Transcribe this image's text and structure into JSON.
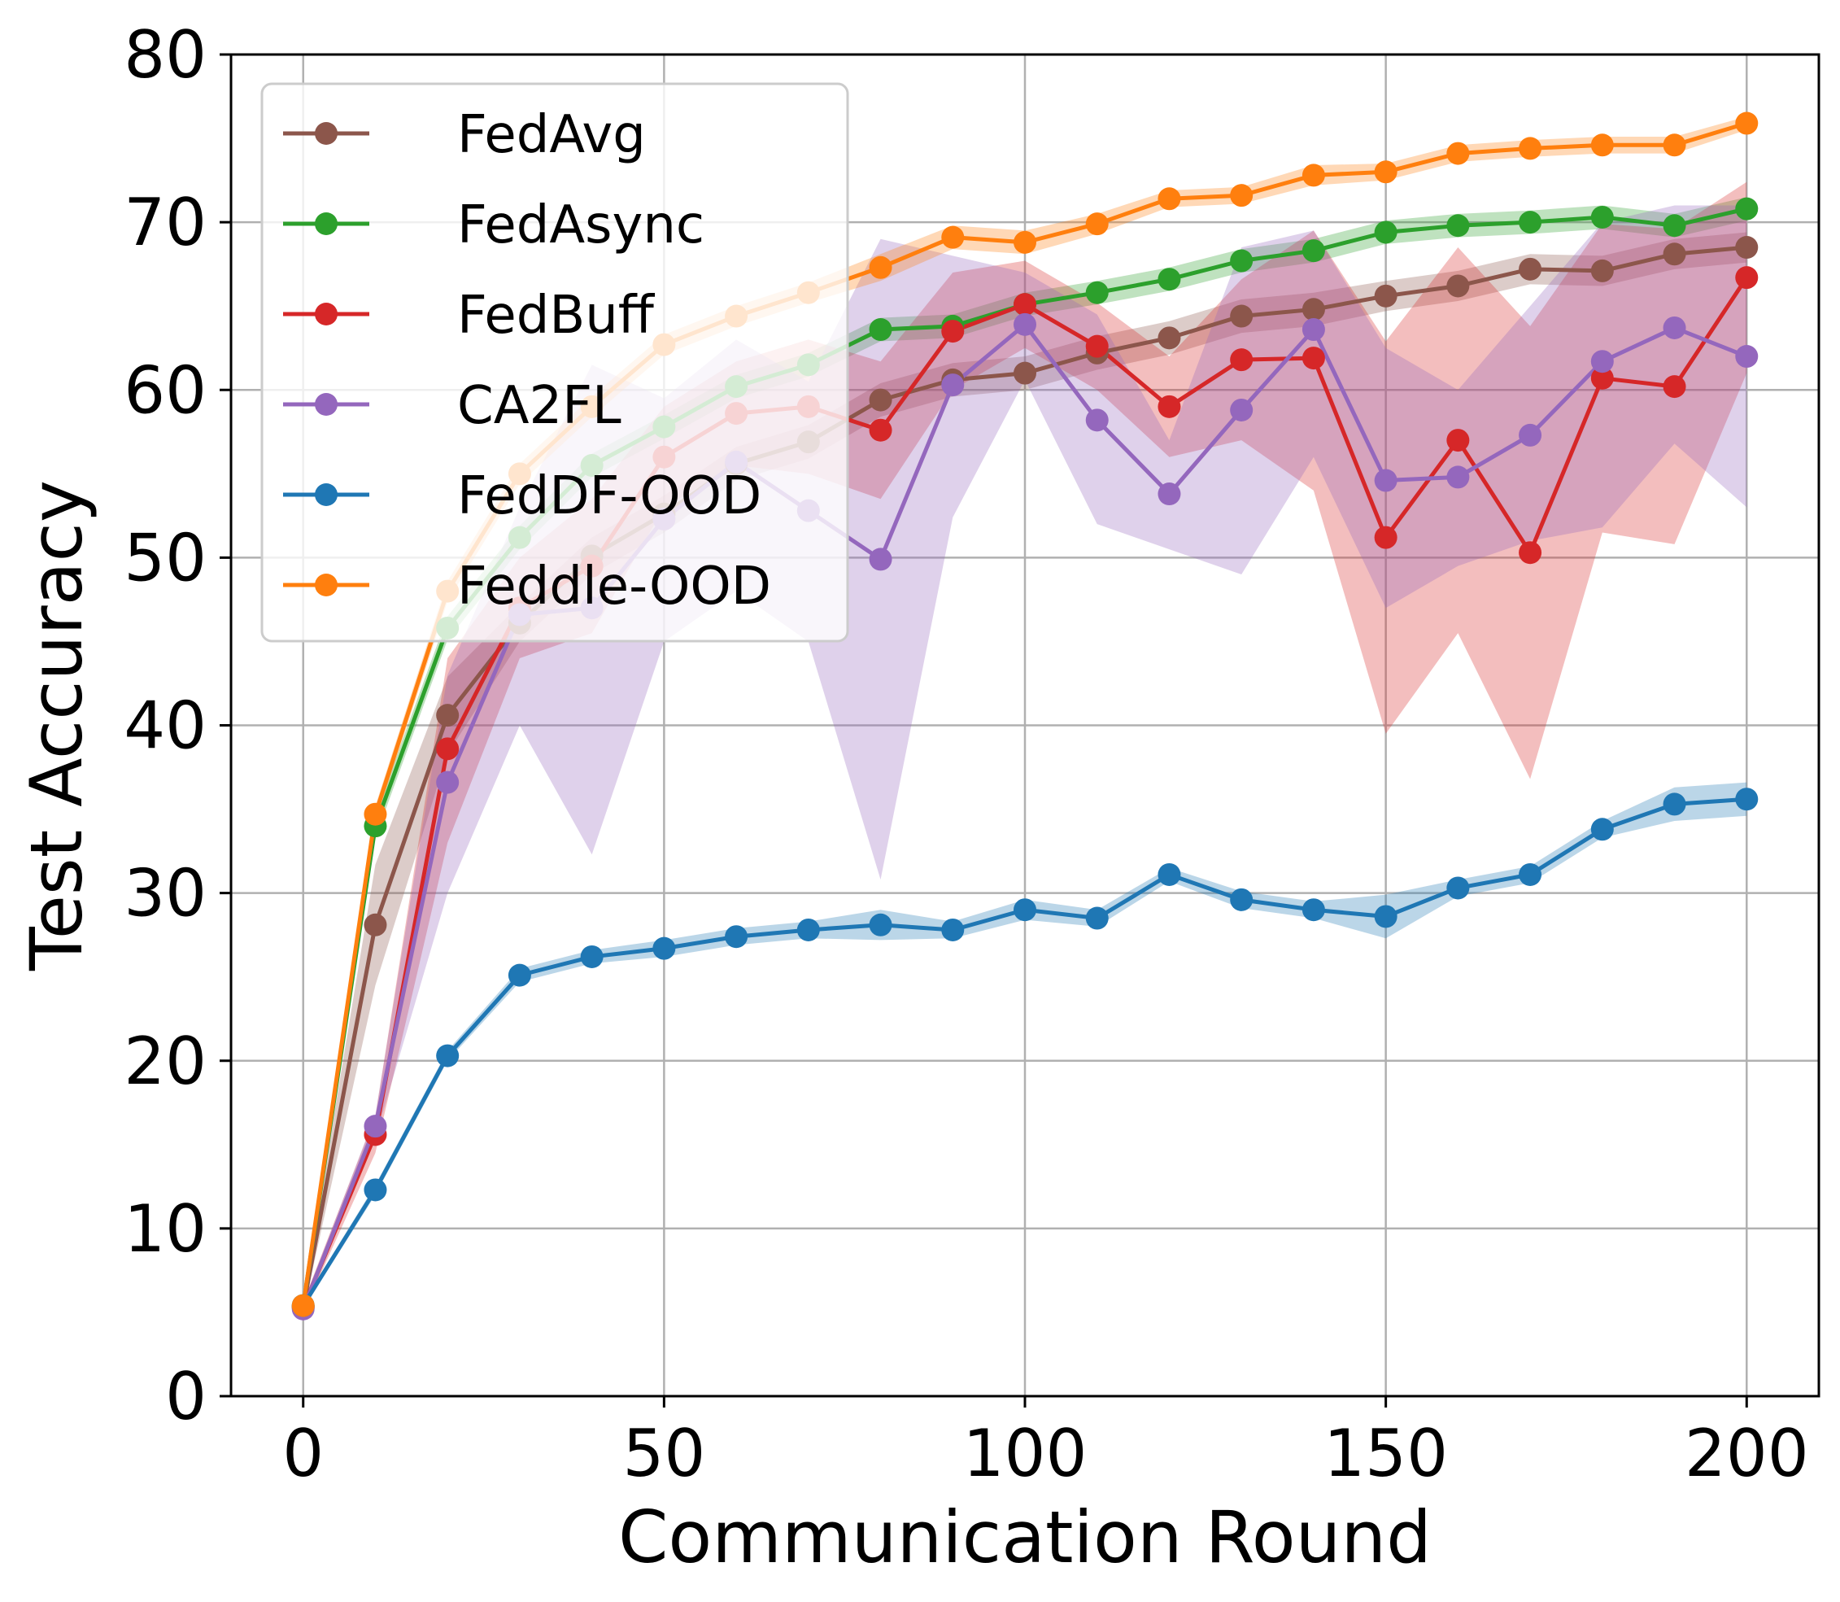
{
  "chart_data": {
    "type": "line",
    "title": "",
    "xlabel": "Communication Round",
    "ylabel": "Test Accuracy",
    "xlim": [
      -10,
      210
    ],
    "ylim": [
      0,
      80
    ],
    "xticks": [
      0,
      50,
      100,
      150,
      200
    ],
    "yticks": [
      0,
      10,
      20,
      30,
      40,
      50,
      60,
      70,
      80
    ],
    "grid": true,
    "legend_position": "top-left",
    "x": [
      0,
      10,
      20,
      30,
      40,
      50,
      60,
      70,
      80,
      90,
      100,
      110,
      120,
      130,
      140,
      150,
      160,
      170,
      180,
      190,
      200
    ],
    "series": [
      {
        "name": "FedAvg",
        "color": "#8c564b",
        "values": [
          5.3,
          28.1,
          40.6,
          46.1,
          50.1,
          52.6,
          55.6,
          56.9,
          59.4,
          60.6,
          61.0,
          62.2,
          63.1,
          64.4,
          64.8,
          65.6,
          66.2,
          67.2,
          67.1,
          68.1,
          68.5
        ],
        "lower": [
          5.0,
          24.5,
          38.3,
          45.0,
          49.0,
          51.5,
          54.6,
          55.9,
          58.4,
          59.6,
          60.0,
          61.2,
          62.1,
          63.4,
          63.8,
          64.7,
          65.3,
          66.3,
          66.2,
          67.2,
          67.6
        ],
        "upper": [
          5.6,
          31.7,
          42.9,
          47.2,
          51.2,
          53.7,
          56.6,
          57.9,
          60.4,
          61.6,
          62.0,
          63.2,
          64.1,
          65.4,
          65.8,
          66.5,
          67.1,
          68.1,
          68.0,
          69.0,
          69.4
        ]
      },
      {
        "name": "FedAsync",
        "color": "#2ca02c",
        "values": [
          5.4,
          34.0,
          45.8,
          51.2,
          55.5,
          57.8,
          60.2,
          61.5,
          63.6,
          63.8,
          65.1,
          65.8,
          66.6,
          67.7,
          68.3,
          69.4,
          69.8,
          70.0,
          70.3,
          69.8,
          70.8
        ],
        "lower": [
          5.1,
          33.3,
          45.1,
          50.5,
          54.8,
          57.1,
          59.5,
          60.8,
          62.9,
          63.1,
          64.4,
          65.1,
          65.9,
          67.0,
          67.6,
          68.7,
          69.1,
          69.3,
          69.6,
          69.1,
          70.1
        ],
        "upper": [
          5.7,
          34.7,
          46.5,
          51.9,
          56.2,
          58.5,
          60.9,
          62.2,
          64.3,
          64.5,
          65.8,
          66.5,
          67.3,
          68.4,
          69.0,
          70.1,
          70.5,
          70.7,
          71.0,
          70.5,
          71.5
        ]
      },
      {
        "name": "FedBuff",
        "color": "#d62728",
        "values": [
          5.3,
          15.6,
          38.6,
          47.0,
          49.5,
          56.0,
          58.6,
          59.0,
          57.6,
          63.5,
          65.1,
          62.6,
          59.0,
          61.8,
          61.9,
          51.2,
          57.0,
          50.3,
          60.7,
          60.2,
          66.7
        ],
        "lower": [
          5.0,
          14.5,
          33.0,
          44.0,
          45.5,
          53.0,
          55.5,
          55.0,
          53.5,
          60.0,
          62.5,
          60.0,
          56.0,
          57.0,
          54.0,
          39.5,
          45.5,
          36.8,
          51.5,
          50.8,
          61.0
        ],
        "upper": [
          5.6,
          16.7,
          44.0,
          50.0,
          53.5,
          59.0,
          61.7,
          63.0,
          61.7,
          67.0,
          67.7,
          65.2,
          62.0,
          66.6,
          69.5,
          62.9,
          68.5,
          63.8,
          69.9,
          69.6,
          72.4
        ]
      },
      {
        "name": "CA2FL",
        "color": "#9467bd",
        "values": [
          5.2,
          16.1,
          36.6,
          46.6,
          47.0,
          52.3,
          55.7,
          52.8,
          49.9,
          60.3,
          63.9,
          58.2,
          53.8,
          58.8,
          63.6,
          54.6,
          54.8,
          57.3,
          61.7,
          63.7,
          62.0
        ],
        "lower": [
          4.9,
          15.4,
          30.0,
          40.0,
          32.3,
          45.0,
          48.0,
          45.0,
          30.8,
          52.4,
          60.6,
          52.0,
          50.5,
          49.0,
          56.0,
          47.0,
          49.5,
          51.0,
          51.8,
          56.8,
          53.0
        ],
        "upper": [
          5.5,
          16.8,
          43.0,
          53.0,
          61.5,
          59.5,
          63.0,
          60.5,
          69.0,
          68.0,
          67.0,
          64.5,
          57.0,
          68.5,
          69.5,
          62.5,
          60.0,
          65.0,
          70.0,
          71.0,
          71.0
        ]
      },
      {
        "name": "FedDF-OOD",
        "color": "#1f77b4",
        "values": [
          5.4,
          12.3,
          20.3,
          25.1,
          26.2,
          26.7,
          27.4,
          27.8,
          28.1,
          27.8,
          29.0,
          28.5,
          31.1,
          29.6,
          29.0,
          28.6,
          30.3,
          31.1,
          33.8,
          35.3,
          35.6
        ],
        "lower": [
          5.2,
          12.0,
          20.0,
          24.7,
          25.8,
          26.2,
          26.9,
          27.3,
          27.2,
          27.3,
          28.4,
          28.0,
          30.7,
          29.1,
          28.5,
          27.3,
          29.8,
          30.6,
          33.3,
          34.3,
          34.6
        ],
        "upper": [
          5.6,
          12.6,
          20.6,
          25.5,
          26.6,
          27.2,
          27.9,
          28.3,
          29.0,
          28.3,
          29.6,
          29.0,
          31.5,
          30.1,
          29.5,
          29.9,
          30.8,
          31.6,
          34.3,
          36.3,
          36.6
        ]
      },
      {
        "name": "Feddle-OOD",
        "color": "#ff7f0e",
        "values": [
          5.4,
          34.7,
          48.0,
          55.0,
          59.0,
          62.7,
          64.4,
          65.8,
          67.3,
          69.1,
          68.8,
          69.9,
          71.4,
          71.6,
          72.8,
          73.0,
          74.1,
          74.4,
          74.6,
          74.6,
          75.9
        ],
        "lower": [
          5.2,
          34.2,
          47.4,
          54.4,
          58.4,
          62.1,
          63.8,
          65.2,
          66.5,
          68.4,
          68.1,
          69.3,
          70.9,
          71.1,
          72.2,
          72.5,
          73.6,
          73.9,
          74.1,
          74.1,
          75.5
        ],
        "upper": [
          5.6,
          35.2,
          48.6,
          55.6,
          59.6,
          63.3,
          65.0,
          66.4,
          68.1,
          69.8,
          69.5,
          70.5,
          71.9,
          72.1,
          73.4,
          73.5,
          74.6,
          74.9,
          75.1,
          75.1,
          76.3
        ]
      }
    ]
  }
}
